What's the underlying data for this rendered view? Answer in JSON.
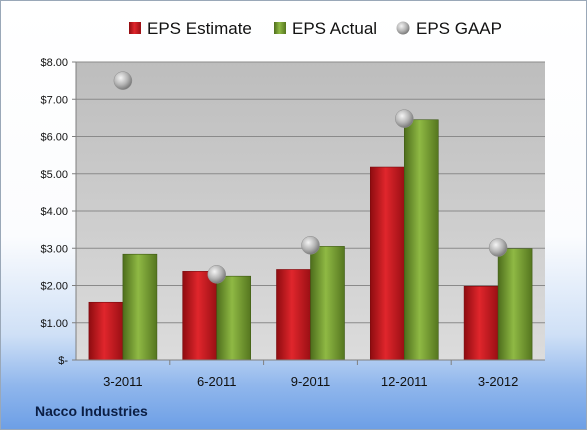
{
  "chart_data": {
    "type": "bar",
    "categories": [
      "3-2011",
      "6-2011",
      "9-2011",
      "12-2011",
      "3-2012"
    ],
    "series": [
      {
        "name": "EPS Estimate",
        "kind": "bar",
        "color": "#c8161d",
        "values": [
          1.55,
          2.38,
          2.43,
          5.18,
          1.98
        ]
      },
      {
        "name": "EPS Actual",
        "kind": "bar",
        "color": "#6f9a2e",
        "values": [
          2.84,
          2.25,
          3.05,
          6.45,
          2.99
        ]
      },
      {
        "name": "EPS GAAP",
        "kind": "marker",
        "color": "#b8b8b8",
        "values": [
          7.5,
          2.3,
          3.08,
          6.48,
          3.02
        ]
      }
    ],
    "y_ticks": [
      "$-",
      "$1.00",
      "$2.00",
      "$3.00",
      "$4.00",
      "$5.00",
      "$6.00",
      "$7.00",
      "$8.00"
    ],
    "ylim": [
      0,
      8
    ],
    "grid": true,
    "legend_position": "top",
    "company": "Nacco Industries",
    "title": "",
    "xlabel": "",
    "ylabel": ""
  }
}
